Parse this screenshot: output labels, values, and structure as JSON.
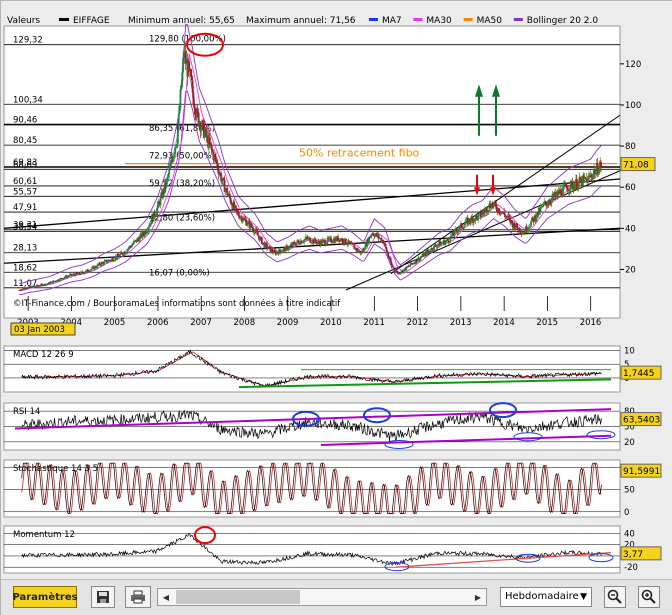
{
  "header": {
    "valeurs_label": "Valeurs",
    "stock": "EIFFAGE",
    "min_text": "Minimum annuel: 55,65",
    "max_text": "Maximum annuel: 71,56",
    "indicators": [
      {
        "name": "MA7",
        "color": "#2233ee"
      },
      {
        "name": "MA30",
        "color": "#ee33ee"
      },
      {
        "name": "MA50",
        "color": "#ff8800"
      },
      {
        "name": "Bollinger 20 2.0",
        "color": "#8833cc"
      }
    ]
  },
  "colors": {
    "up": "#1d9a1d",
    "down": "#c01010",
    "bollinger": "#8833cc",
    "ma30": "#ee33ee",
    "ma7": "#2233ee",
    "fibo": "#ff8800",
    "price_badge": "#f5d21b"
  },
  "chart_data": [
    {
      "type": "candlestick",
      "title": "EIFFAGE",
      "x": [
        2002.85,
        2003.0,
        2003.25,
        2003.5,
        2003.75,
        2004.0,
        2004.25,
        2004.5,
        2004.75,
        2005.0,
        2005.25,
        2005.5,
        2005.75,
        2006.0,
        2006.25,
        2006.5,
        2006.65,
        2006.8,
        2006.95,
        2007.1,
        2007.25,
        2007.4,
        2007.55,
        2007.7,
        2007.85,
        2008.0,
        2008.25,
        2008.5,
        2008.75,
        2009.0,
        2009.25,
        2009.5,
        2009.75,
        2010.0,
        2010.25,
        2010.5,
        2010.75,
        2011.0,
        2011.25,
        2011.45,
        2011.6,
        2011.75,
        2012.0,
        2012.25,
        2012.5,
        2012.75,
        2013.0,
        2013.25,
        2013.5,
        2013.75,
        2014.0,
        2014.25,
        2014.5,
        2014.75,
        2015.0,
        2015.25,
        2015.5,
        2015.75,
        2016.0,
        2016.15,
        2016.3
      ],
      "y": [
        10,
        11,
        12,
        13,
        15,
        17,
        18,
        20,
        23,
        25,
        28,
        33,
        38,
        48,
        62,
        85,
        125,
        112,
        95,
        88,
        80,
        72,
        62,
        55,
        48,
        45,
        40,
        32,
        28,
        30,
        33,
        35,
        33,
        34,
        35,
        32,
        28,
        38,
        34,
        22,
        18,
        20,
        24,
        28,
        32,
        34,
        40,
        44,
        46,
        52,
        48,
        42,
        38,
        45,
        52,
        56,
        60,
        62,
        64,
        68,
        71
      ],
      "ylim": [
        10,
        135
      ],
      "yticks": [
        "120",
        "100",
        "80",
        "60",
        "40",
        "20"
      ],
      "left_levels": [
        "129,32",
        "100,34",
        "90,46",
        "80,45",
        "69,83",
        "68,69",
        "60,61",
        "55,57",
        "47,91",
        "39,31",
        "38,54",
        "28,13",
        "18,62",
        "11,07"
      ],
      "xticks": [
        "2003",
        "2004",
        "2005",
        "2006",
        "2007",
        "2008",
        "2009",
        "2010",
        "2011",
        "2012",
        "2013",
        "2014",
        "2015",
        "2016"
      ],
      "fibo_levels": [
        {
          "label": "129,80 (100,00%)",
          "value": 129.8
        },
        {
          "label": "86,35 (61,80%)",
          "value": 86.35
        },
        {
          "label": "72,93 (50,00%)",
          "value": 72.93
        },
        {
          "label": "59,52 (38,20%)",
          "value": 59.52
        },
        {
          "label": "42,80 (23,60%)",
          "value": 42.8
        },
        {
          "label": "16,07 (0,00%)",
          "value": 16.07
        }
      ],
      "annotation": "50% retracement fibo",
      "last_value": "71,08",
      "source": "©IT-Finance.com / BoursoramaLes informations sont données à titre indicatif",
      "cursor_date": "03 Jan 2003",
      "grid": true
    },
    {
      "type": "line",
      "title": "MACD 12 26 9",
      "yticks": [
        "10",
        "5",
        "0"
      ],
      "last_value": "1,7445",
      "x": [
        2003,
        2004,
        2005,
        2006,
        2006.8,
        2007.5,
        2008.5,
        2009.5,
        2010.5,
        2011.5,
        2012.5,
        2013.5,
        2014.5,
        2015.5,
        2016.3
      ],
      "values": [
        0.3,
        0.5,
        0.8,
        2.5,
        9.5,
        2,
        -3,
        0.5,
        0.5,
        -1.5,
        0.8,
        1.5,
        0.5,
        1.2,
        1.7
      ]
    },
    {
      "type": "line",
      "title": "RSI 14",
      "yticks": [
        "80",
        "50",
        "20"
      ],
      "last_value": "63,5403",
      "x": [
        2003,
        2004,
        2005,
        2006,
        2006.8,
        2007.5,
        2008.5,
        2009.5,
        2010.5,
        2011.5,
        2012.5,
        2013.5,
        2014.5,
        2015.5,
        2016.3
      ],
      "values": [
        52,
        60,
        62,
        68,
        72,
        45,
        35,
        58,
        52,
        30,
        55,
        70,
        45,
        58,
        63.5
      ]
    },
    {
      "type": "line",
      "title": "Stochastique 14 3 5",
      "yticks": [
        "100",
        "50",
        "0"
      ],
      "last_value": "91,5991",
      "x": [
        2003,
        2004,
        2005,
        2006,
        2006.8,
        2007.5,
        2008.5,
        2009.5,
        2010.5,
        2011.5,
        2012.5,
        2013.5,
        2014.5,
        2015.5,
        2016.3
      ],
      "values": [
        80,
        40,
        85,
        30,
        90,
        20,
        60,
        85,
        25,
        10,
        80,
        30,
        90,
        20,
        91.6
      ]
    },
    {
      "type": "line",
      "title": "Momentum 12",
      "yticks": [
        "40",
        "20",
        "0",
        "-20"
      ],
      "last_value": "3,77",
      "x": [
        2003,
        2004,
        2005,
        2006,
        2006.8,
        2007.5,
        2008.5,
        2009.5,
        2010.5,
        2011.5,
        2012.5,
        2013.5,
        2014.5,
        2015.5,
        2016.3
      ],
      "values": [
        1,
        2,
        3,
        8,
        38,
        -10,
        -12,
        4,
        2,
        -14,
        5,
        4,
        -3,
        6,
        3.8
      ]
    }
  ],
  "toolbar": {
    "params_label": "Paramètres",
    "period": "Hebdomadaire"
  }
}
